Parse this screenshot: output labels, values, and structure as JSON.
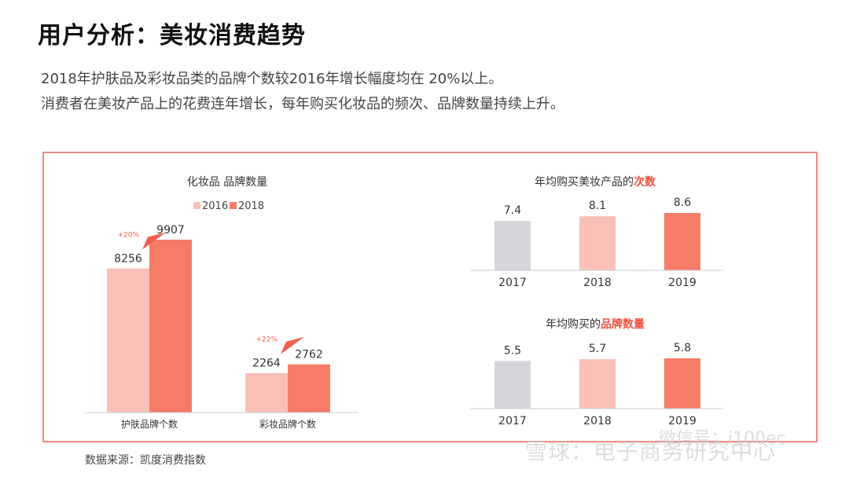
{
  "header": {
    "title": "用户分析：美妆消费趋势",
    "line1": "2018年护肤品及彩妆品类的品牌个数较2016年增长幅度均在 20%以上。",
    "line2": "消费者在美妆产品上的花费连年增长，每年购买化妆品的频次、品牌数量持续上升。"
  },
  "colors": {
    "c2016": "#f8c0b6",
    "c2018": "#f47c68",
    "c2017": "#d7d5d9",
    "panel_border": "#ef8a80",
    "arrow": "#f25e4e"
  },
  "chart_data": [
    {
      "type": "bar",
      "title": "化妆品 品牌数量",
      "categories": [
        "护肤品牌个数",
        "彩妆品牌个数"
      ],
      "series": [
        {
          "name": "2016",
          "values": [
            8256,
            2264
          ]
        },
        {
          "name": "2018",
          "values": [
            9907,
            2762
          ]
        }
      ],
      "growth_labels": [
        "+20%",
        "+22%"
      ],
      "legend": "top"
    },
    {
      "type": "bar",
      "title_prefix": "年均购买美妆产品的",
      "title_highlight": "次数",
      "categories": [
        "2017",
        "2018",
        "2019"
      ],
      "values": [
        7.4,
        8.1,
        8.6
      ]
    },
    {
      "type": "bar",
      "title_prefix": "年均购买的",
      "title_highlight": "品牌数量",
      "categories": [
        "2017",
        "2018",
        "2019"
      ],
      "values": [
        5.5,
        5.7,
        5.8
      ]
    }
  ],
  "footer": {
    "source": "数据来源：凯度消费指数",
    "watermark1": "雪球：电子商务研究中心",
    "watermark2": "微信号：i100ec"
  }
}
